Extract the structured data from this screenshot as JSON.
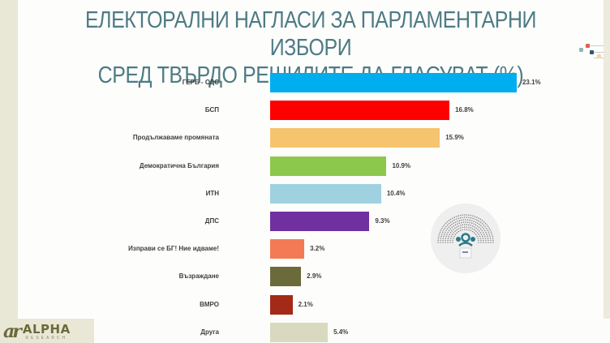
{
  "title": {
    "line1": "ЕЛЕКТОРАЛНИ НАГЛАСИ ЗА ПАРЛАМЕНТАРНИ ИЗБОРИ",
    "line2": "СРЕД ТВЪРДО РЕШИЛИТЕ ДА ГЛАСУВАТ (%)"
  },
  "logo": {
    "name": "ALPHA",
    "sub": "RESEARCH",
    "mark": "ar"
  },
  "icons": {
    "emblem": "parliament-ballot-box-icon",
    "decoration": "colored-dots-lines-icon"
  },
  "colors": {
    "title": "#4d7b84",
    "background_strip": "#e9e7d6"
  },
  "chart_data": {
    "type": "bar",
    "orientation": "horizontal",
    "title": "ЕЛЕКТОРАЛНИ НАГЛАСИ ЗА ПАРЛАМЕНТАРНИ ИЗБОРИ СРЕД ТВЪРДО РЕШИЛИТЕ ДА ГЛАСУВАТ (%)",
    "xlabel": "",
    "ylabel": "",
    "grid": false,
    "legend": null,
    "categories": [
      "ГЕРБ - СДС",
      "БСП",
      "Продължаваме промяната",
      "Демократична България",
      "ИТН",
      "ДПС",
      "Изправи се БГ! Ние идваме!",
      "Възраждане",
      "ВМРО",
      "Друга"
    ],
    "values": [
      23.1,
      16.8,
      15.9,
      10.9,
      10.4,
      9.3,
      3.2,
      2.9,
      2.1,
      5.4
    ],
    "labels": [
      "23.1%",
      "16.8%",
      "15.9%",
      "10.9%",
      "10.4%",
      "9.3%",
      "3.2%",
      "2.9%",
      "2.1%",
      "5.4%"
    ],
    "colors": [
      "#00aeef",
      "#ff0000",
      "#f6c46e",
      "#8cc84b",
      "#9fd1e0",
      "#7030a0",
      "#f47a55",
      "#6b6a3a",
      "#a22a16",
      "#d9d9bf"
    ],
    "unit": "%"
  }
}
